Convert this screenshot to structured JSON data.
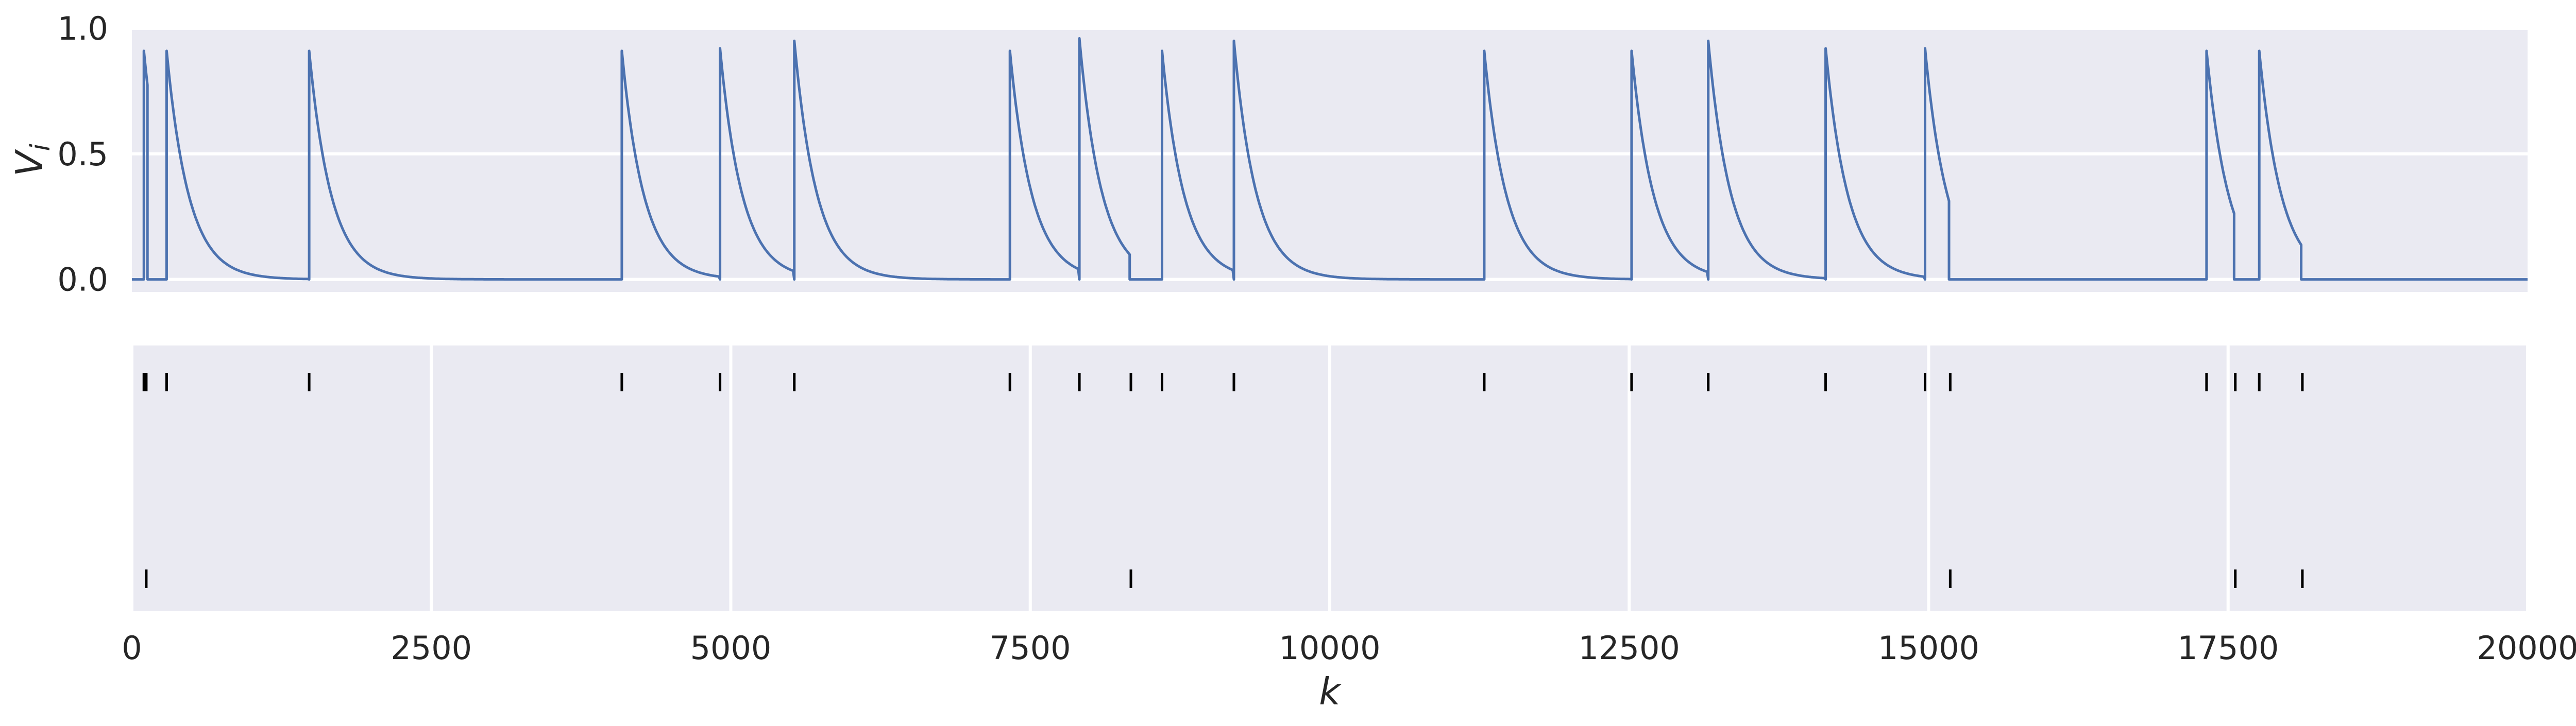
{
  "chart_data": {
    "type": "line",
    "xlim": [
      0,
      20000
    ],
    "x_ticks": [
      "0",
      "2500",
      "5000",
      "7500",
      "10000",
      "12500",
      "15000",
      "17500",
      "20000"
    ],
    "xlabel": "k",
    "panels": [
      {
        "name": "membrane-potential",
        "type": "line",
        "ylabel": "V_i",
        "ylim": [
          -0.05,
          1.0
        ],
        "y_ticks": [
          "0.0",
          "0.5",
          "1.0"
        ],
        "series_color": "#4C72B0",
        "fire_events": [
          {
            "start": 100,
            "peak": 0.91,
            "end": 130,
            "reset_after": true
          },
          {
            "start": 290,
            "peak": 0.91,
            "end": 1470,
            "reset_after": false
          },
          {
            "start": 1480,
            "peak": 0.91,
            "end": 4080,
            "reset_after": false
          },
          {
            "start": 4090,
            "peak": 0.91,
            "end": 4900,
            "reset_after": false
          },
          {
            "start": 4910,
            "peak": 0.92,
            "end": 5520,
            "reset_after": false
          },
          {
            "start": 5530,
            "peak": 0.95,
            "end": 7320,
            "reset_after": false
          },
          {
            "start": 7330,
            "peak": 0.91,
            "end": 7900,
            "reset_after": false
          },
          {
            "start": 7910,
            "peak": 0.96,
            "end": 8330,
            "reset_after": true
          },
          {
            "start": 8600,
            "peak": 0.91,
            "end": 9190,
            "reset_after": false
          },
          {
            "start": 9200,
            "peak": 0.95,
            "end": 11280,
            "reset_after": false
          },
          {
            "start": 11290,
            "peak": 0.91,
            "end": 12510,
            "reset_after": false
          },
          {
            "start": 12520,
            "peak": 0.91,
            "end": 13150,
            "reset_after": false
          },
          {
            "start": 13160,
            "peak": 0.95,
            "end": 14130,
            "reset_after": false
          },
          {
            "start": 14140,
            "peak": 0.92,
            "end": 14960,
            "reset_after": false
          },
          {
            "start": 14970,
            "peak": 0.92,
            "end": 15170,
            "reset_after": true
          },
          {
            "start": 17320,
            "peak": 0.91,
            "end": 17550,
            "reset_after": true
          },
          {
            "start": 17760,
            "peak": 0.91,
            "end": 18110,
            "reset_after": true
          }
        ],
        "resting_level": 0.0,
        "decay_rate_per_k": 0.0054
      },
      {
        "name": "spike-raster",
        "type": "event",
        "rows": [
          {
            "name": "row-1",
            "times": [
              100,
              120,
              290,
              1480,
              4090,
              4910,
              5530,
              7330,
              7910,
              8340,
              8600,
              9200,
              11290,
              12520,
              13160,
              14140,
              14970,
              15180,
              17320,
              17560,
              17760,
              18120
            ]
          },
          {
            "name": "row-2",
            "times": [
              120,
              8340,
              15180,
              17560,
              18120
            ]
          }
        ]
      }
    ]
  }
}
